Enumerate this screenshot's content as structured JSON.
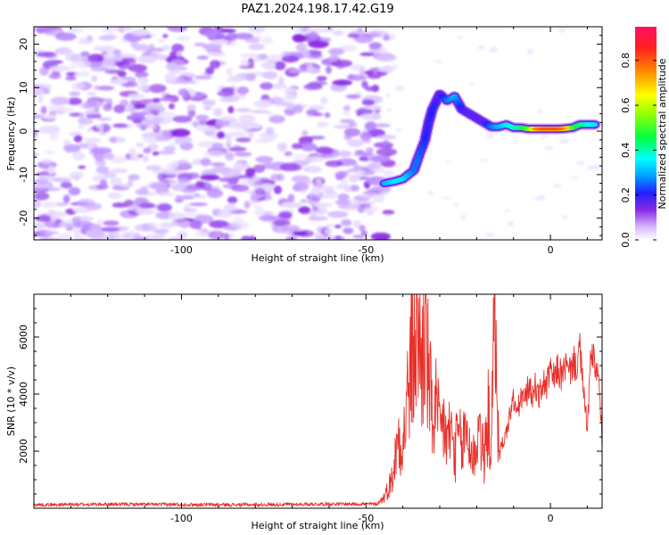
{
  "title": "PAZ1.2024.198.17.42.G19",
  "chart_data": [
    {
      "type": "heatmap",
      "xlabel": "Height of straight line (km)",
      "ylabel": "Frequency (Hz)",
      "xlim": [
        -140,
        14
      ],
      "ylim": [
        -25,
        24
      ],
      "xticks": [
        "-100",
        "-50",
        "0"
      ],
      "yticks": [
        "-20",
        "-10",
        "0",
        "10",
        "20"
      ],
      "colorbar": {
        "label": "Normalized spectral amplitude",
        "ticks": [
          "0.0",
          "0.2",
          "0.4",
          "0.6",
          "0.8"
        ],
        "range": [
          0,
          0.95
        ]
      },
      "signal_track": [
        {
          "x": -45,
          "y": -12,
          "v": 0.35
        },
        {
          "x": -42,
          "y": -11.5,
          "v": 0.4
        },
        {
          "x": -40,
          "y": -11,
          "v": 0.4
        },
        {
          "x": -37,
          "y": -9,
          "v": 0.3
        },
        {
          "x": -36,
          "y": -6.5,
          "v": 0.3
        },
        {
          "x": -34,
          "y": -2,
          "v": 0.25
        },
        {
          "x": -33,
          "y": 2,
          "v": 0.22
        },
        {
          "x": -32,
          "y": 5,
          "v": 0.25
        },
        {
          "x": -30,
          "y": 8.5,
          "v": 0.2
        },
        {
          "x": -28,
          "y": 7,
          "v": 0.3
        },
        {
          "x": -26,
          "y": 8,
          "v": 0.35
        },
        {
          "x": -24,
          "y": 5,
          "v": 0.22
        },
        {
          "x": -22,
          "y": 4,
          "v": 0.2
        },
        {
          "x": -20,
          "y": 3,
          "v": 0.2
        },
        {
          "x": -18,
          "y": 2,
          "v": 0.2
        },
        {
          "x": -16,
          "y": 1,
          "v": 0.3
        },
        {
          "x": -14,
          "y": 1,
          "v": 0.35
        },
        {
          "x": -12,
          "y": 1.5,
          "v": 0.4
        },
        {
          "x": -10,
          "y": 0.8,
          "v": 0.45
        },
        {
          "x": -8,
          "y": 0.8,
          "v": 0.5
        },
        {
          "x": -6,
          "y": 0.5,
          "v": 0.6
        },
        {
          "x": -4,
          "y": 0.5,
          "v": 0.8
        },
        {
          "x": -2,
          "y": 0.5,
          "v": 0.85
        },
        {
          "x": 0,
          "y": 0.5,
          "v": 0.85
        },
        {
          "x": 2,
          "y": 0.5,
          "v": 0.85
        },
        {
          "x": 4,
          "y": 0.6,
          "v": 0.8
        },
        {
          "x": 6,
          "y": 0.8,
          "v": 0.6
        },
        {
          "x": 8,
          "y": 1.5,
          "v": 0.5
        },
        {
          "x": 10,
          "y": 1.5,
          "v": 0.45
        },
        {
          "x": 12,
          "y": 1.5,
          "v": 0.4
        }
      ]
    },
    {
      "type": "line",
      "xlabel": "Height of straight line (km)",
      "ylabel": "SNR (10 * v/v)",
      "xlim": [
        -140,
        14
      ],
      "ylim": [
        0,
        7500
      ],
      "xticks": [
        "-100",
        "-50",
        "0"
      ],
      "yticks": [
        "2000",
        "4000",
        "6000"
      ],
      "series": [
        {
          "color": "#e8302a",
          "x": [
            -140,
            -120,
            -100,
            -80,
            -60,
            -47,
            -45,
            -43,
            -42,
            -41,
            -40,
            -39,
            -38,
            -37,
            -36,
            -35,
            -34,
            -33,
            -32,
            -31,
            -30,
            -29,
            -28,
            -27,
            -26,
            -25,
            -24,
            -23,
            -22,
            -21,
            -20,
            -19,
            -18,
            -17,
            -16,
            -15,
            -14,
            -13,
            -12,
            -11,
            -10,
            -9,
            -8,
            -7,
            -6,
            -5,
            -4,
            -3,
            -2,
            -1,
            0,
            1,
            2,
            3,
            4,
            5,
            6,
            7,
            8,
            9,
            10,
            11,
            12,
            13,
            14
          ],
          "y": [
            120,
            140,
            130,
            120,
            150,
            150,
            400,
            1000,
            1800,
            2700,
            2200,
            3500,
            4800,
            5500,
            6500,
            5000,
            6200,
            4500,
            3200,
            3500,
            2500,
            3000,
            2300,
            2800,
            1800,
            2600,
            2000,
            2800,
            2300,
            1700,
            2400,
            2900,
            1500,
            3300,
            2200,
            7400,
            1800,
            2300,
            2600,
            3300,
            3800,
            3300,
            3900,
            3800,
            4200,
            4000,
            4300,
            3900,
            4400,
            4300,
            4800,
            4500,
            4900,
            4600,
            5000,
            4700,
            5100,
            5000,
            5500,
            4000,
            2800,
            5400,
            5000,
            4600,
            2400
          ]
        }
      ]
    }
  ]
}
